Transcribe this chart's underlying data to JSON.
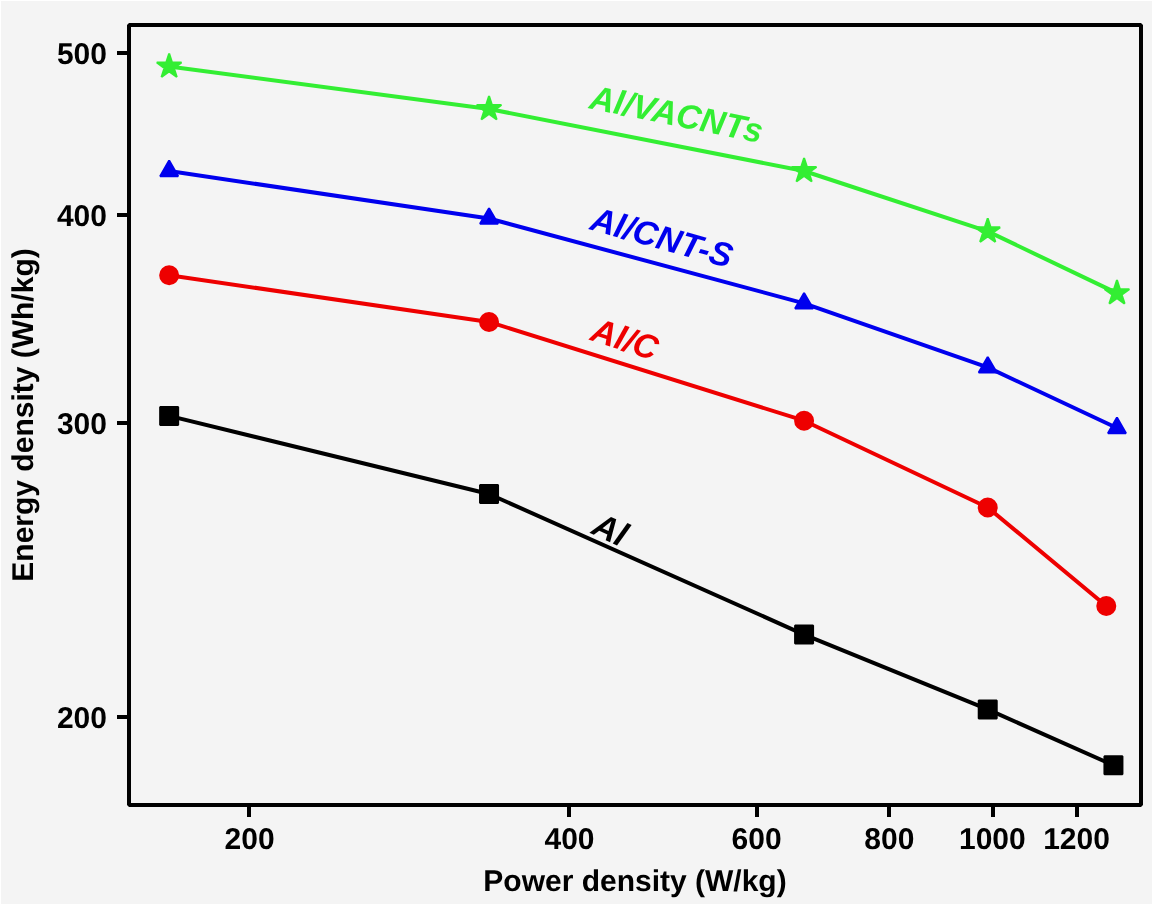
{
  "chart_data": {
    "type": "line",
    "xlabel": "Power density (W/kg)",
    "ylabel": "Energy density (Wh/kg)",
    "log": "xy",
    "xlim": [
      154,
      1380
    ],
    "ylim": [
      177,
      520
    ],
    "xticks": [
      200,
      400,
      600,
      800,
      1000,
      1200
    ],
    "yticks": [
      200,
      300,
      400,
      500
    ],
    "grid": false,
    "line_style": "solid",
    "series": [
      {
        "name": "Al/VACNTs",
        "color": "#33ee33",
        "marker": "star",
        "x": [
          168,
          336,
          665,
          990,
          1310
        ],
        "values": [
          491,
          463,
          425,
          391,
          359
        ]
      },
      {
        "name": "Al/CNT-S",
        "color": "#0000ee",
        "marker": "triangle",
        "x": [
          168,
          336,
          665,
          990,
          1310
        ],
        "values": [
          425,
          398,
          354,
          324,
          298
        ]
      },
      {
        "name": "Al/C",
        "color": "#ee0000",
        "marker": "circle",
        "x": [
          168,
          336,
          665,
          990,
          1280
        ],
        "values": [
          368,
          345,
          301,
          267,
          233
        ]
      },
      {
        "name": "Al",
        "color": "#000000",
        "marker": "square",
        "x": [
          168,
          336,
          665,
          990,
          1300
        ],
        "values": [
          303,
          272,
          224,
          202,
          187
        ]
      }
    ]
  }
}
